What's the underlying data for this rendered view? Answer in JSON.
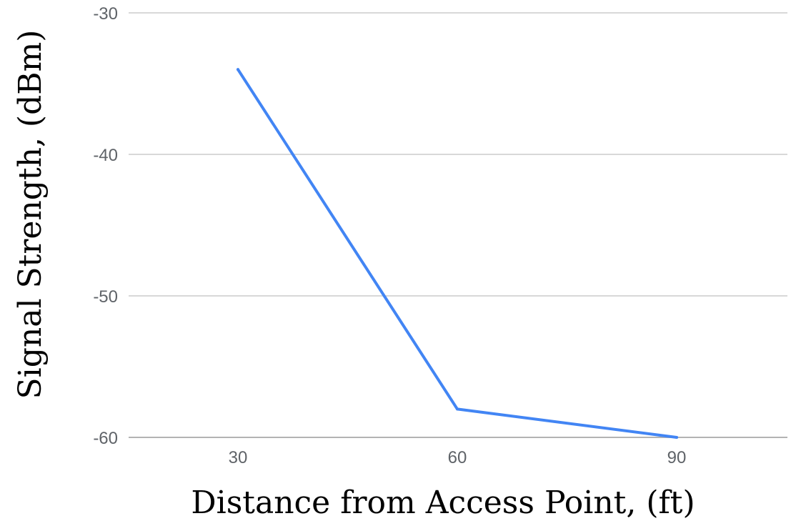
{
  "chart_data": {
    "type": "line",
    "title": "",
    "xlabel": "Distance from Access Point, (ft)",
    "ylabel": "Signal Strength, (dBm)",
    "x": [
      30,
      60,
      90
    ],
    "x_tick_labels": [
      "30",
      "60",
      "90"
    ],
    "series": [
      {
        "values": [
          -34,
          -58,
          -60
        ],
        "color": "#4285f4"
      }
    ],
    "ylim": [
      -60,
      -30
    ],
    "y_ticks": [
      -30,
      -40,
      -50,
      -60
    ],
    "y_tick_labels": [
      "-30",
      "-40",
      "-50",
      "-60"
    ],
    "grid": true,
    "legend": "none"
  }
}
